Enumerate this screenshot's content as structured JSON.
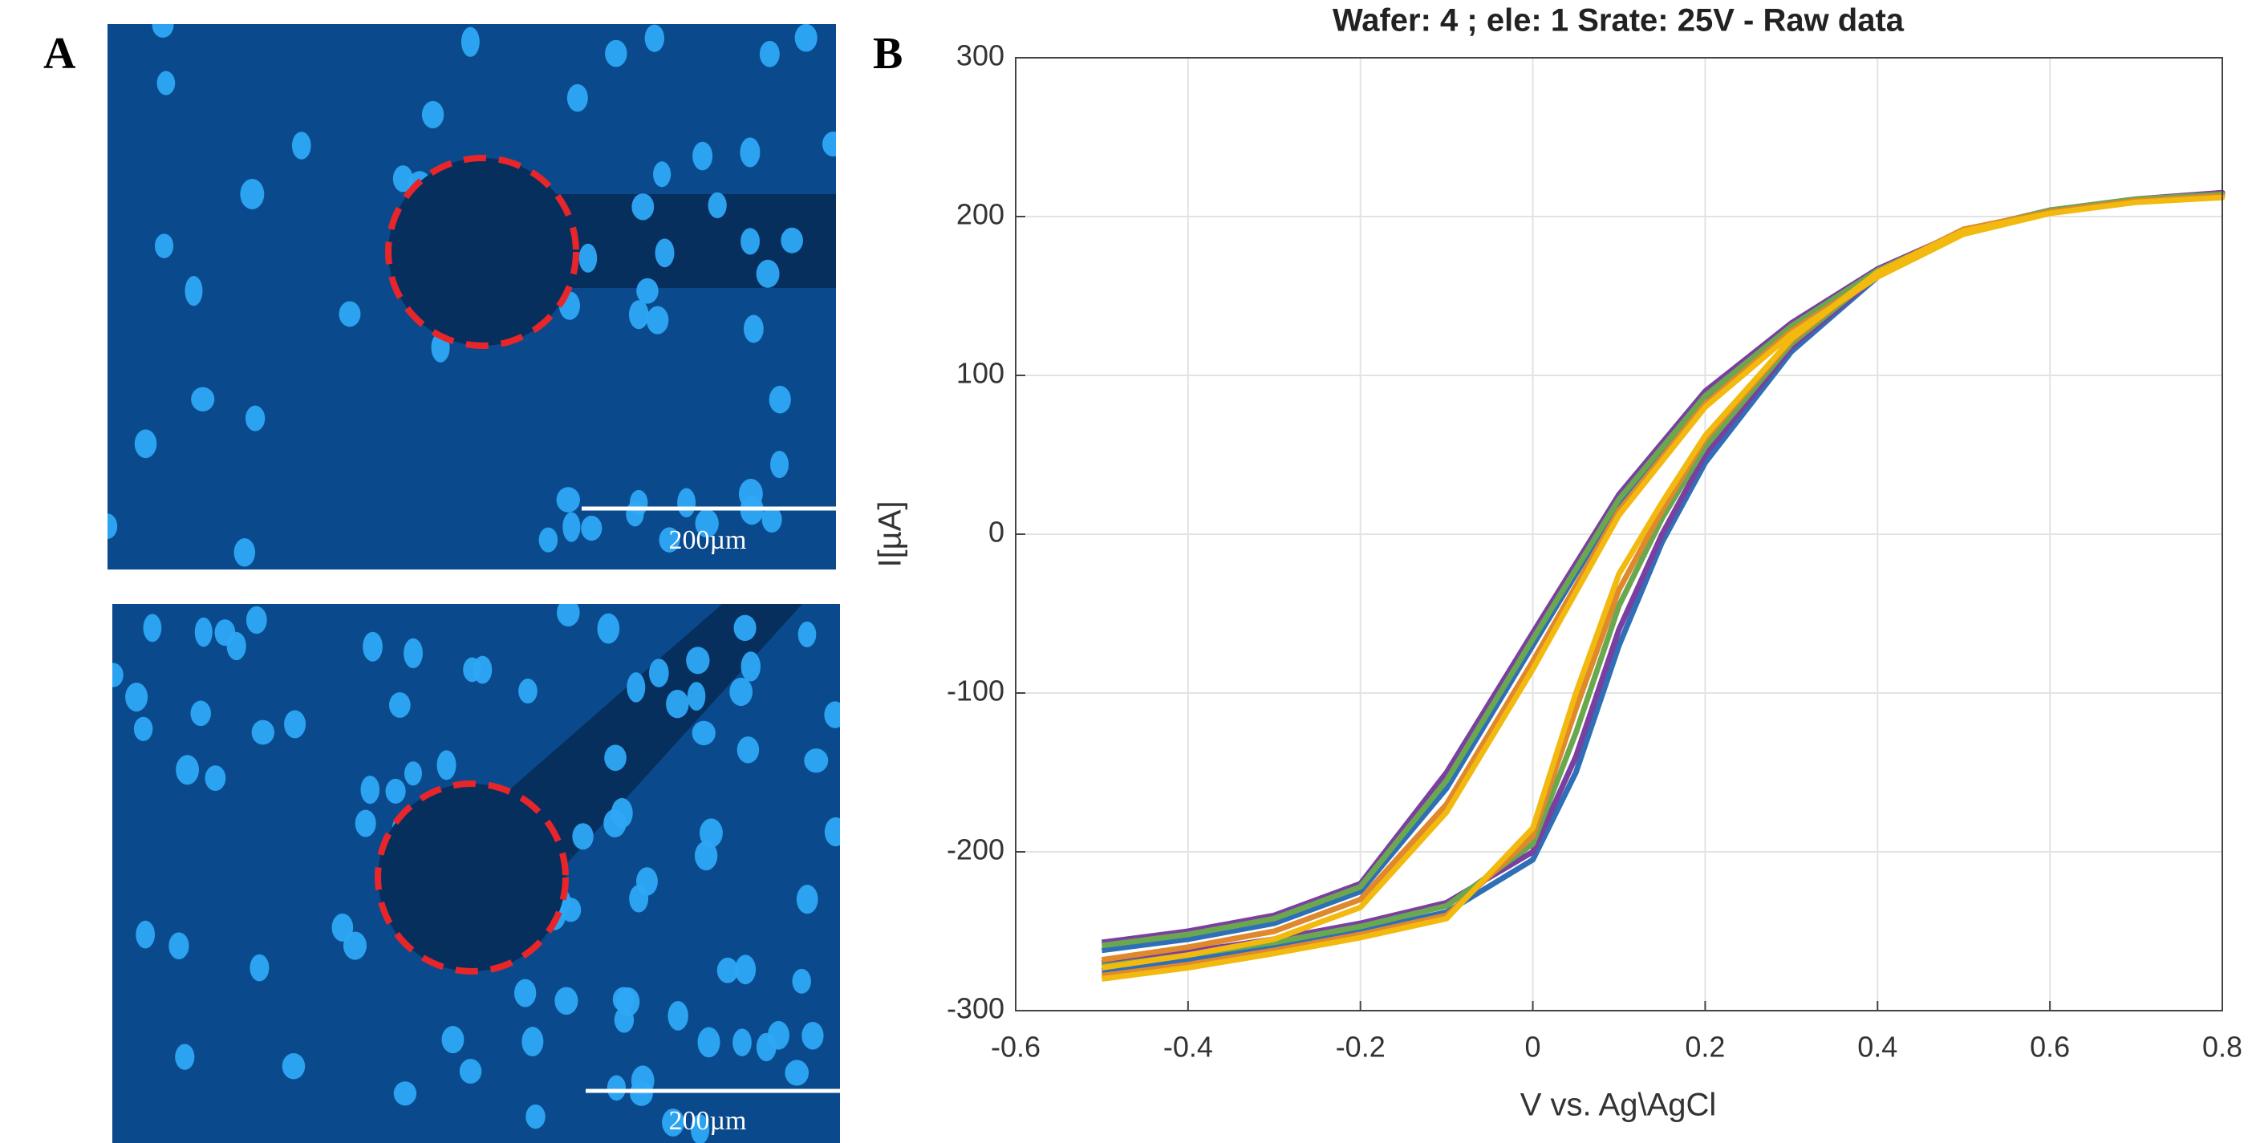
{
  "panel_labels": [
    "A",
    "B"
  ],
  "scale_bar_labels": [
    "200µm",
    "200µm"
  ],
  "chart_data": {
    "type": "line",
    "title": "Wafer: 4 ; ele: 1 Srate: 25V - Raw data",
    "xlabel": "V vs. Ag\\AgCl",
    "ylabel": "I[µA]",
    "xlim": [
      -0.6,
      0.8
    ],
    "ylim": [
      -300,
      300
    ],
    "xticks": [
      -0.6,
      -0.4,
      -0.2,
      0,
      0.2,
      0.4,
      0.6,
      0.8
    ],
    "yticks": [
      -300,
      -200,
      -100,
      0,
      100,
      200,
      300
    ],
    "grid": true,
    "series": [
      {
        "color": "#2f6fb7",
        "x": [
          -0.5,
          -0.4,
          -0.3,
          -0.2,
          -0.1,
          0,
          0.05,
          0.1,
          0.15,
          0.2,
          0.3,
          0.4,
          0.5,
          0.6,
          0.7,
          0.8,
          0.7,
          0.6,
          0.5,
          0.4,
          0.3,
          0.2,
          0.1,
          0,
          -0.1,
          -0.2,
          -0.3,
          -0.4,
          -0.5
        ],
        "values": [
          -275,
          -268,
          -260,
          -250,
          -238,
          -205,
          -150,
          -70,
          -5,
          45,
          115,
          162,
          190,
          203,
          210,
          215,
          210,
          203,
          190,
          165,
          130,
          85,
          20,
          -70,
          -160,
          -225,
          -245,
          -255,
          -262
        ]
      },
      {
        "color": "#7b3fa0",
        "x": [
          -0.5,
          -0.4,
          -0.3,
          -0.2,
          -0.1,
          0,
          0.05,
          0.1,
          0.15,
          0.2,
          0.3,
          0.4,
          0.5,
          0.6,
          0.7,
          0.8,
          0.7,
          0.6,
          0.5,
          0.4,
          0.3,
          0.2,
          0.1,
          0,
          -0.1,
          -0.2,
          -0.3,
          -0.4,
          -0.5
        ],
        "values": [
          -270,
          -263,
          -255,
          -245,
          -232,
          -200,
          -140,
          -60,
          0,
          50,
          118,
          163,
          191,
          204,
          211,
          215,
          211,
          204,
          191,
          167,
          133,
          90,
          25,
          -62,
          -150,
          -220,
          -240,
          -250,
          -257
        ]
      },
      {
        "color": "#6aa84f",
        "x": [
          -0.5,
          -0.4,
          -0.3,
          -0.2,
          -0.1,
          0,
          0.05,
          0.1,
          0.15,
          0.2,
          0.3,
          0.4,
          0.5,
          0.6,
          0.7,
          0.8,
          0.7,
          0.6,
          0.5,
          0.4,
          0.3,
          0.2,
          0.1,
          0,
          -0.1,
          -0.2,
          -0.3,
          -0.4,
          -0.5
        ],
        "values": [
          -272,
          -265,
          -257,
          -247,
          -234,
          -195,
          -125,
          -45,
          10,
          55,
          120,
          164,
          191,
          204,
          211,
          214,
          211,
          204,
          191,
          166,
          131,
          87,
          22,
          -66,
          -155,
          -222,
          -242,
          -252,
          -259
        ]
      },
      {
        "color": "#e0892c",
        "x": [
          -0.5,
          -0.4,
          -0.3,
          -0.2,
          -0.1,
          0,
          0.05,
          0.1,
          0.15,
          0.2,
          0.3,
          0.4,
          0.5,
          0.6,
          0.7,
          0.8,
          0.7,
          0.6,
          0.5,
          0.4,
          0.3,
          0.2,
          0.1,
          0,
          -0.1,
          -0.2,
          -0.3,
          -0.4,
          -0.5
        ],
        "values": [
          -278,
          -271,
          -262,
          -252,
          -240,
          -190,
          -110,
          -35,
          15,
          60,
          122,
          165,
          192,
          203,
          210,
          213,
          210,
          203,
          190,
          163,
          128,
          82,
          15,
          -80,
          -170,
          -230,
          -250,
          -260,
          -268
        ]
      },
      {
        "color": "#f2b90f",
        "x": [
          -0.5,
          -0.4,
          -0.3,
          -0.2,
          -0.1,
          0,
          0.05,
          0.1,
          0.15,
          0.2,
          0.3,
          0.4,
          0.5,
          0.6,
          0.7,
          0.8,
          0.7,
          0.6,
          0.5,
          0.4,
          0.3,
          0.2,
          0.1,
          0,
          -0.1,
          -0.2,
          -0.3,
          -0.4,
          -0.5
        ],
        "values": [
          -280,
          -273,
          -264,
          -254,
          -242,
          -185,
          -100,
          -25,
          20,
          62,
          123,
          165,
          191,
          202,
          209,
          212,
          209,
          202,
          189,
          162,
          126,
          80,
          12,
          -85,
          -175,
          -235,
          -255,
          -265,
          -273
        ]
      }
    ]
  }
}
